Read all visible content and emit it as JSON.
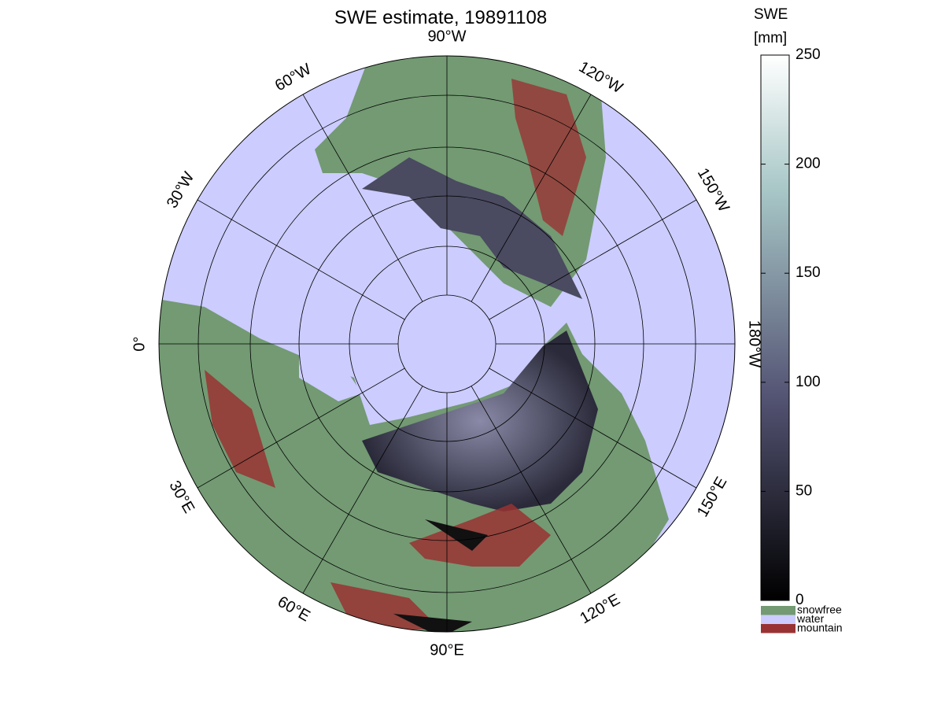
{
  "title": "SWE estimate, 19891108",
  "map": {
    "longitude_labels": [
      "90°W",
      "120°W",
      "150°W",
      "180°W",
      "150°E",
      "120°E",
      "90°E",
      "60°E",
      "30°E",
      "0°",
      "30°W",
      "60°W"
    ]
  },
  "colorbar": {
    "title": [
      "SWE",
      "[mm]"
    ],
    "lim": [
      0,
      250
    ],
    "ticks": [
      0,
      50,
      100,
      150,
      200,
      250
    ]
  },
  "legend": [
    {
      "name": "snowfree",
      "color": "#739a73"
    },
    {
      "name": "water",
      "color": "#ccccff"
    },
    {
      "name": "mountain",
      "color": "#993333"
    }
  ]
}
